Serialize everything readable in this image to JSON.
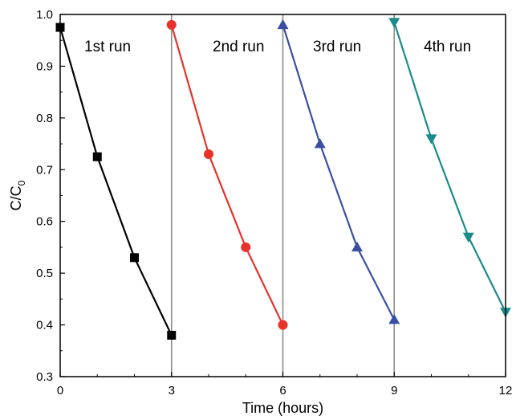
{
  "chart_data": {
    "type": "line",
    "xlabel": "Time (hours)",
    "ylabel": "C/C",
    "ylabel_subscript": "0",
    "xlim": [
      0,
      12
    ],
    "ylim": [
      0.3,
      1.0
    ],
    "xticks": [
      "0",
      "3",
      "6",
      "9",
      "12"
    ],
    "xtick_values": [
      0,
      3,
      6,
      9,
      12
    ],
    "yticks": [
      "0.3",
      "0.4",
      "0.5",
      "0.6",
      "0.7",
      "0.8",
      "0.9",
      "1.0"
    ],
    "ytick_values": [
      0.3,
      0.4,
      0.5,
      0.6,
      0.7,
      0.8,
      0.9,
      1.0
    ],
    "grid": false,
    "separators": [
      3,
      6,
      9
    ],
    "series": [
      {
        "name": "1st run",
        "color": "#000000",
        "marker": "square",
        "x": [
          0,
          1,
          2,
          3
        ],
        "y": [
          0.975,
          0.725,
          0.53,
          0.38
        ]
      },
      {
        "name": "2nd run",
        "color": "#e8312a",
        "marker": "circle",
        "x": [
          3,
          4,
          5,
          6
        ],
        "y": [
          0.98,
          0.73,
          0.55,
          0.4
        ]
      },
      {
        "name": "3rd run",
        "color": "#3a4fa3",
        "marker": "triangle-up",
        "x": [
          6,
          7,
          8,
          9
        ],
        "y": [
          0.98,
          0.75,
          0.55,
          0.41
        ]
      },
      {
        "name": "4th run",
        "color": "#1a8a8a",
        "marker": "triangle-down",
        "x": [
          9,
          10,
          11,
          12
        ],
        "y": [
          0.985,
          0.76,
          0.57,
          0.425
        ]
      }
    ]
  }
}
